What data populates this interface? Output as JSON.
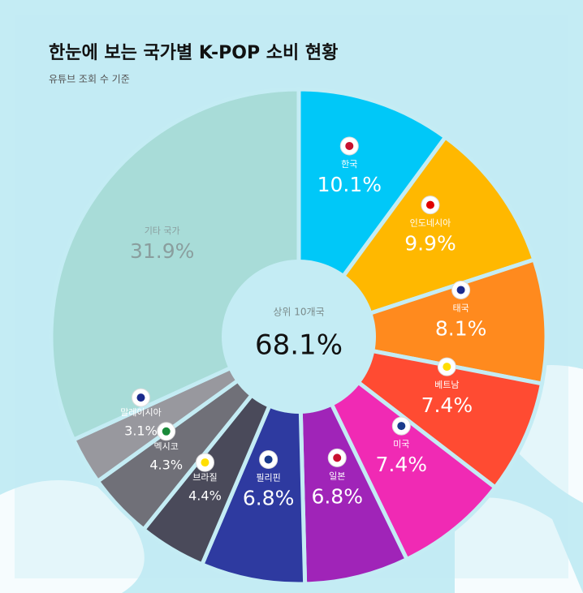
{
  "chart_data": {
    "type": "donut",
    "title": "한눈에 보는 국가별 K-POP 소비 현황",
    "subtitle": "유튜브 조회 수 기준",
    "categories": [
      "한국",
      "인도네시아",
      "태국",
      "베트남",
      "미국",
      "일본",
      "필리핀",
      "브라질",
      "멕시코",
      "말레이시아",
      "기타 국가"
    ],
    "values": [
      10.1,
      9.9,
      8.1,
      7.4,
      7.4,
      6.8,
      6.8,
      4.4,
      4.3,
      3.1,
      31.9
    ],
    "value_labels": [
      "10.1%",
      "9.9%",
      "8.1%",
      "7.4%",
      "7.4%",
      "6.8%",
      "6.8%",
      "4.4%",
      "4.3%",
      "3.1%",
      "31.9%"
    ],
    "colors": [
      "#00c8f8",
      "#ffb800",
      "#ff8a1e",
      "#ff4b32",
      "#f02ab4",
      "#a024b8",
      "#2e3aa0",
      "#4a4a5a",
      "#707078",
      "#98989e",
      "#a8dcd8"
    ],
    "center_label": "상위 10개국",
    "center_value": {
      "value": 68.1,
      "label": "68.1%"
    }
  }
}
